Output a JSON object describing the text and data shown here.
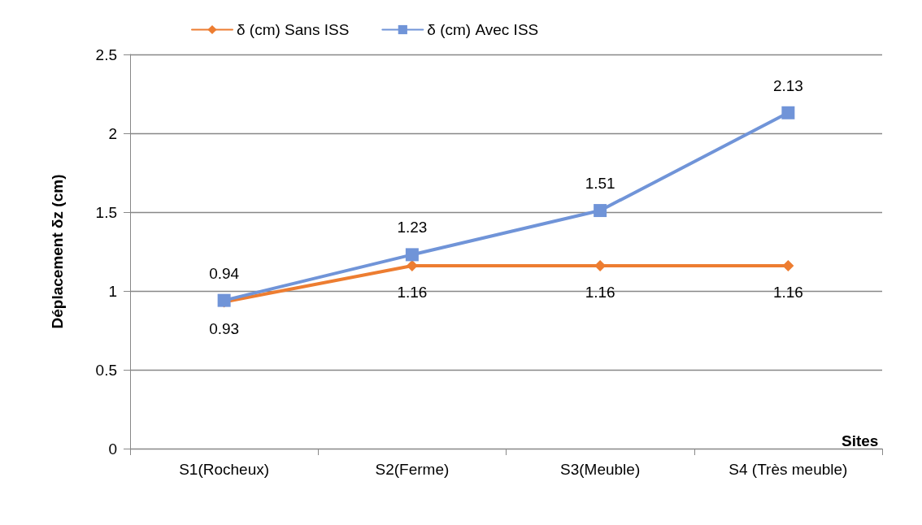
{
  "chart_data": {
    "type": "line",
    "xlabel": "Sites",
    "ylabel": "Déplacement δz (cm)",
    "categories": [
      "S1(Rocheux)",
      "S2(Ferme)",
      "S3(Meuble)",
      "S4 (Très meuble)"
    ],
    "series": [
      {
        "name": "δ (cm) Sans ISS",
        "color": "#ed7d31",
        "marker": "diamond",
        "values": [
          0.93,
          1.16,
          1.16,
          1.16
        ]
      },
      {
        "name": "δ (cm) Avec ISS",
        "color": "#7094d8",
        "marker": "square",
        "values": [
          0.94,
          1.23,
          1.51,
          2.13
        ]
      }
    ],
    "ylim": [
      0,
      2.5
    ],
    "yticks": [
      0,
      0.5,
      1,
      1.5,
      2,
      2.5
    ],
    "grid": "y",
    "legend": "top",
    "data_labels": true,
    "line_style": "solid"
  }
}
